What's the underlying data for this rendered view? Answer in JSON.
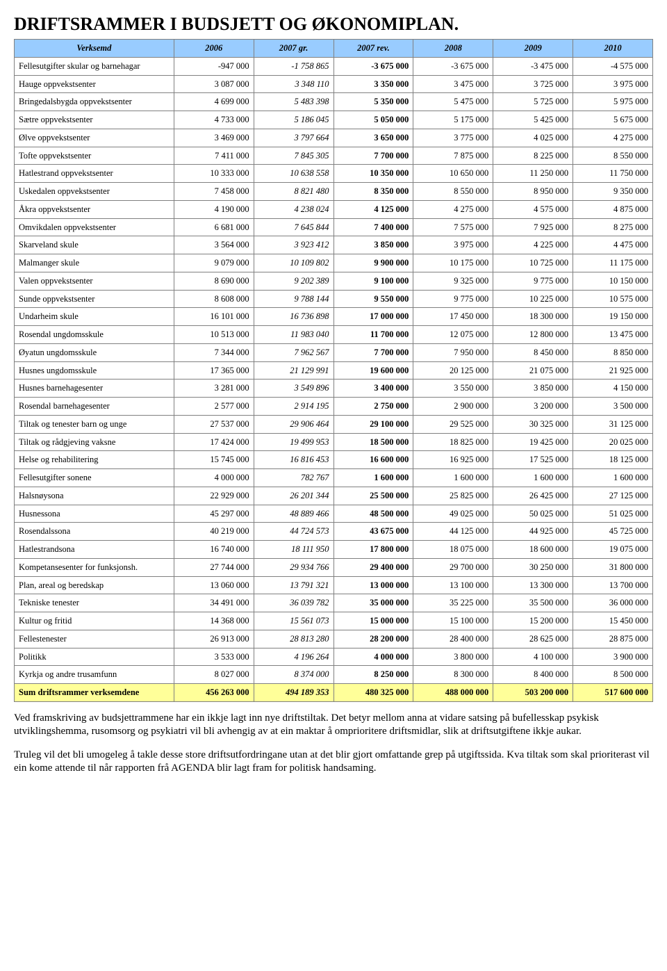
{
  "title": "DRIFTSRAMMER I BUDSJETT OG ØKONOMIPLAN.",
  "columns": [
    "Verksemd",
    "2006",
    "2007 gr.",
    "2007 rev.",
    "2008",
    "2009",
    "2010"
  ],
  "col_styles": [
    "",
    "",
    "italic",
    "bold",
    "",
    "",
    ""
  ],
  "header_bg": "#99ccff",
  "sum_bg": "#ffff99",
  "border_color": "#808080",
  "rows": [
    {
      "label": "Fellesutgifter skular og barnehagar",
      "vals": [
        "-947 000",
        "-1 758 865",
        "-3 675 000",
        "-3 675 000",
        "-3 475 000",
        "-4 575 000"
      ]
    },
    {
      "label": "Hauge oppvekstsenter",
      "vals": [
        "3 087 000",
        "3 348 110",
        "3 350 000",
        "3 475 000",
        "3 725 000",
        "3 975 000"
      ]
    },
    {
      "label": "Bringedalsbygda oppvekstsenter",
      "vals": [
        "4 699 000",
        "5 483 398",
        "5 350 000",
        "5 475 000",
        "5 725 000",
        "5 975 000"
      ]
    },
    {
      "label": "Sætre oppvekstsenter",
      "vals": [
        "4 733 000",
        "5 186 045",
        "5 050 000",
        "5 175 000",
        "5 425 000",
        "5 675 000"
      ]
    },
    {
      "label": "Ølve oppvekstsenter",
      "vals": [
        "3 469 000",
        "3 797 664",
        "3 650 000",
        "3 775 000",
        "4 025 000",
        "4 275 000"
      ]
    },
    {
      "label": "Tofte oppvekstsenter",
      "vals": [
        "7 411 000",
        "7 845 305",
        "7 700 000",
        "7 875 000",
        "8 225 000",
        "8 550 000"
      ]
    },
    {
      "label": "Hatlestrand oppvekstsenter",
      "vals": [
        "10 333 000",
        "10 638 558",
        "10 350 000",
        "10 650 000",
        "11 250 000",
        "11 750 000"
      ]
    },
    {
      "label": "Uskedalen oppvekstsenter",
      "vals": [
        "7 458 000",
        "8 821 480",
        "8 350 000",
        "8 550 000",
        "8 950 000",
        "9 350 000"
      ]
    },
    {
      "label": "Åkra oppvekstsenter",
      "vals": [
        "4 190 000",
        "4 238 024",
        "4 125 000",
        "4 275 000",
        "4 575 000",
        "4 875 000"
      ]
    },
    {
      "label": "Omvikdalen oppvekstsenter",
      "vals": [
        "6 681 000",
        "7 645 844",
        "7 400 000",
        "7 575 000",
        "7 925 000",
        "8 275 000"
      ]
    },
    {
      "label": "Skarveland skule",
      "vals": [
        "3 564 000",
        "3 923 412",
        "3 850 000",
        "3 975 000",
        "4 225 000",
        "4 475 000"
      ]
    },
    {
      "label": "Malmanger skule",
      "vals": [
        "9 079 000",
        "10 109 802",
        "9 900 000",
        "10 175 000",
        "10 725 000",
        "11 175 000"
      ]
    },
    {
      "label": "Valen oppvekstsenter",
      "vals": [
        "8 690 000",
        "9 202 389",
        "9 100 000",
        "9 325 000",
        "9 775 000",
        "10 150 000"
      ]
    },
    {
      "label": "Sunde oppvekstsenter",
      "vals": [
        "8 608 000",
        "9 788 144",
        "9 550 000",
        "9 775 000",
        "10 225 000",
        "10 575 000"
      ]
    },
    {
      "label": "Undarheim skule",
      "vals": [
        "16 101 000",
        "16 736 898",
        "17 000 000",
        "17 450 000",
        "18 300 000",
        "19 150 000"
      ]
    },
    {
      "label": "Rosendal ungdomsskule",
      "vals": [
        "10 513 000",
        "11 983 040",
        "11 700 000",
        "12 075 000",
        "12 800 000",
        "13 475 000"
      ]
    },
    {
      "label": "Øyatun ungdomsskule",
      "vals": [
        "7 344 000",
        "7 962 567",
        "7 700 000",
        "7 950 000",
        "8 450 000",
        "8 850 000"
      ]
    },
    {
      "label": "Husnes ungdomsskule",
      "vals": [
        "17 365 000",
        "21 129 991",
        "19 600 000",
        "20 125 000",
        "21 075 000",
        "21 925 000"
      ]
    },
    {
      "label": "Husnes barnehagesenter",
      "vals": [
        "3 281 000",
        "3 549 896",
        "3 400 000",
        "3 550 000",
        "3 850 000",
        "4 150 000"
      ]
    },
    {
      "label": "Rosendal barnehagesenter",
      "vals": [
        "2 577 000",
        "2 914 195",
        "2 750 000",
        "2 900 000",
        "3 200 000",
        "3 500 000"
      ]
    },
    {
      "label": "Tiltak og tenester barn og unge",
      "vals": [
        "27 537 000",
        "29 906 464",
        "29 100 000",
        "29 525 000",
        "30 325 000",
        "31 125 000"
      ]
    },
    {
      "label": "Tiltak og rådgjeving vaksne",
      "vals": [
        "17 424 000",
        "19 499 953",
        "18 500 000",
        "18 825 000",
        "19 425 000",
        "20 025 000"
      ]
    },
    {
      "label": "Helse og rehabilitering",
      "vals": [
        "15 745 000",
        "16 816 453",
        "16 600 000",
        "16 925 000",
        "17 525 000",
        "18 125 000"
      ]
    },
    {
      "label": "Fellesutgifter sonene",
      "vals": [
        "4 000 000",
        "782 767",
        "1 600 000",
        "1 600 000",
        "1 600 000",
        "1 600 000"
      ]
    },
    {
      "label": "Halsnøysona",
      "vals": [
        "22 929 000",
        "26 201 344",
        "25 500 000",
        "25 825 000",
        "26 425 000",
        "27 125 000"
      ]
    },
    {
      "label": "Husnessona",
      "vals": [
        "45 297 000",
        "48 889 466",
        "48 500 000",
        "49 025 000",
        "50 025 000",
        "51 025 000"
      ]
    },
    {
      "label": "Rosendalssona",
      "vals": [
        "40 219 000",
        "44 724 573",
        "43 675 000",
        "44 125 000",
        "44 925 000",
        "45 725 000"
      ]
    },
    {
      "label": "Hatlestrandsona",
      "vals": [
        "16 740 000",
        "18 111 950",
        "17 800 000",
        "18 075 000",
        "18 600 000",
        "19 075 000"
      ]
    },
    {
      "label": "Kompetansesenter for funksjonsh.",
      "vals": [
        "27 744 000",
        "29 934 766",
        "29 400 000",
        "29 700 000",
        "30 250 000",
        "31 800 000"
      ]
    },
    {
      "label": "Plan, areal og beredskap",
      "vals": [
        "13 060 000",
        "13 791 321",
        "13 000 000",
        "13 100 000",
        "13 300 000",
        "13 700 000"
      ]
    },
    {
      "label": "Tekniske tenester",
      "vals": [
        "34 491 000",
        "36 039 782",
        "35 000 000",
        "35 225 000",
        "35 500 000",
        "36 000 000"
      ]
    },
    {
      "label": "Kultur og fritid",
      "vals": [
        "14 368 000",
        "15 561 073",
        "15 000 000",
        "15 100 000",
        "15 200 000",
        "15 450 000"
      ]
    },
    {
      "label": "Fellestenester",
      "vals": [
        "26 913 000",
        "28 813 280",
        "28 200 000",
        "28 400 000",
        "28 625 000",
        "28 875 000"
      ]
    },
    {
      "label": "Politikk",
      "vals": [
        "3 533 000",
        "4 196 264",
        "4 000 000",
        "3 800 000",
        "4 100 000",
        "3 900 000"
      ]
    },
    {
      "label": "Kyrkja og andre trusamfunn",
      "vals": [
        "8 027 000",
        "8 374 000",
        "8 250 000",
        "8 300 000",
        "8 400 000",
        "8 500 000"
      ]
    },
    {
      "label": "Sum driftsrammer verksemdene",
      "vals": [
        "456 263 000",
        "494 189 353",
        "480 325 000",
        "488 000 000",
        "503 200 000",
        "517 600 000"
      ],
      "sum": true
    }
  ],
  "paragraphs": [
    "Ved framskriving av budsjettrammene har ein ikkje lagt inn nye driftstiltak. Det betyr mellom anna at vidare satsing på bufellesskap psykisk utviklingshemma, rusomsorg og psykiatri vil bli avhengig av at ein maktar å omprioritere driftsmidlar, slik at driftsutgiftene ikkje aukar.",
    "Truleg vil det bli umogeleg å takle desse store driftsutfordringane utan at det blir gjort omfattande grep på utgiftssida. Kva tiltak som skal prioriterast vil ein kome attende til når rapporten frå AGENDA blir lagt fram for politisk handsaming."
  ]
}
